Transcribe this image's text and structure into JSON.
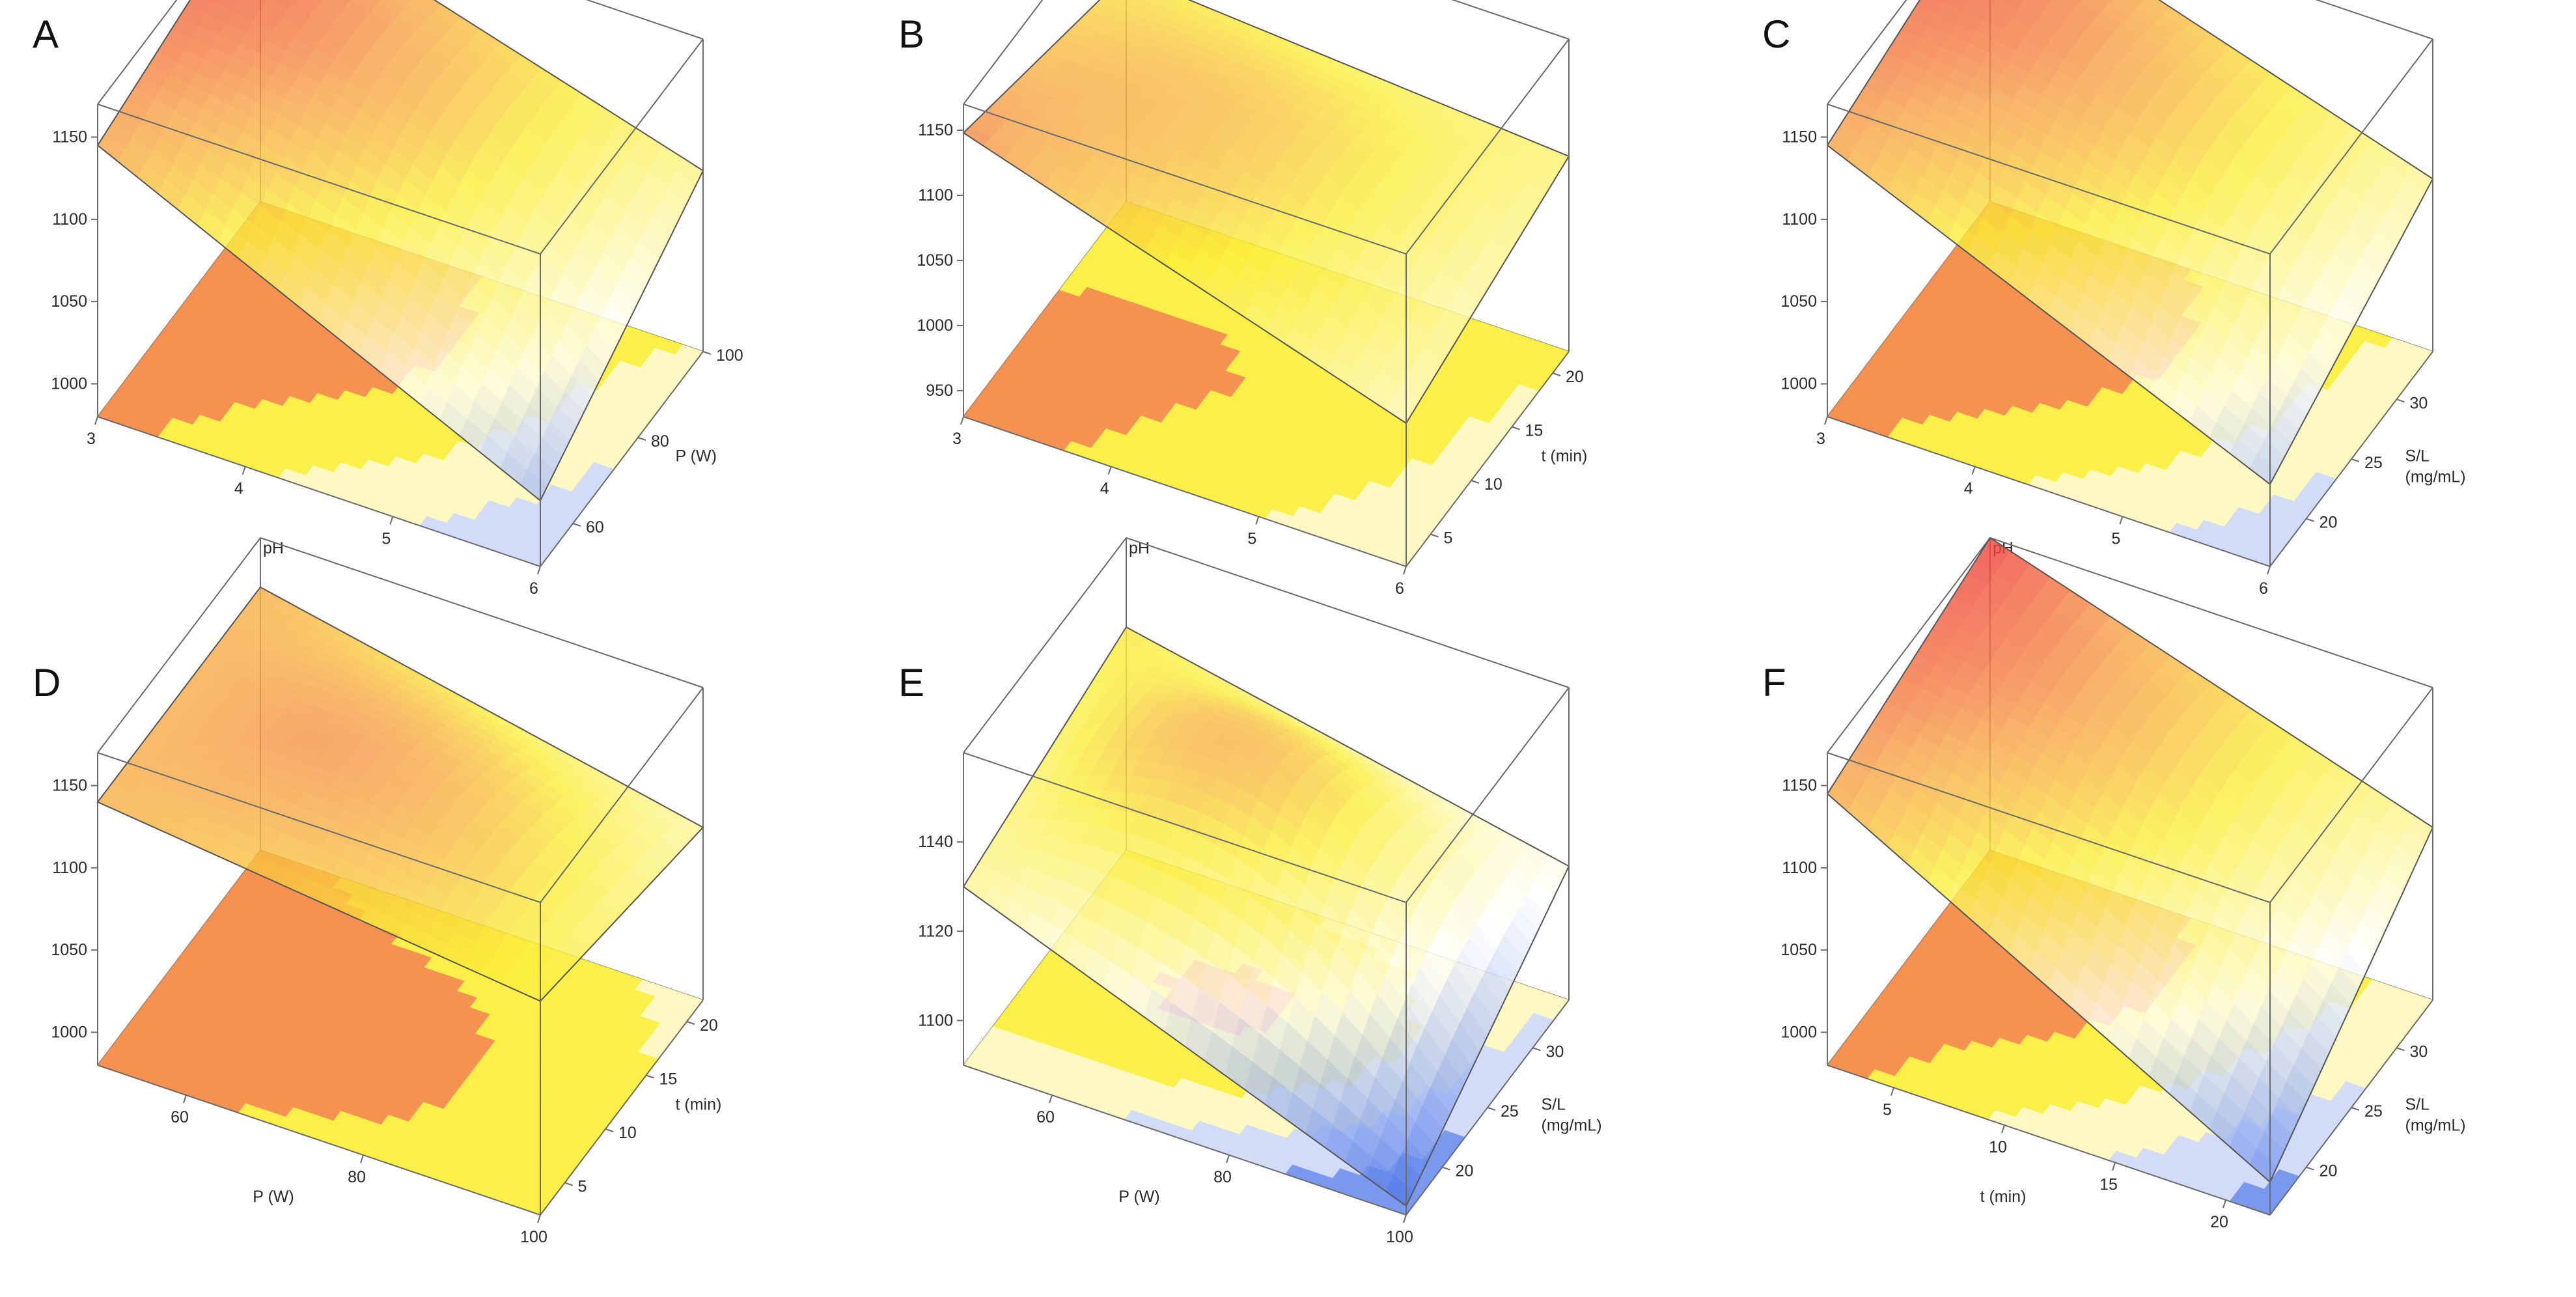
{
  "figure": {
    "description_text": ""
  },
  "colors": {
    "max": "#ef3b3b",
    "high": "#f7a047",
    "mid": "#fbee3a",
    "low": "#ffffff",
    "min": "#3f6be5",
    "box": "#6a6a6a"
  },
  "chart_data": [
    {
      "id": "A",
      "type": "surface3d",
      "label": "A",
      "x": {
        "name": "pH",
        "ticks": [
          "3",
          "4",
          "5",
          "6"
        ],
        "range": [
          3,
          6
        ]
      },
      "y": {
        "name": "P (W)",
        "ticks": [
          "60",
          "80",
          "100"
        ],
        "range": [
          50,
          100
        ]
      },
      "z": {
        "ticks": [
          "1000",
          "1050",
          "1100",
          "1150"
        ],
        "range": [
          980,
          1170
        ]
      },
      "surface_corners": {
        "x_min_y_min": 1145,
        "x_max_y_min": 1020,
        "x_min_y_max": 1170,
        "x_max_y_max": 1090
      },
      "contour_levels": 5
    },
    {
      "id": "B",
      "type": "surface3d",
      "label": "B",
      "x": {
        "name": "pH",
        "ticks": [
          "3",
          "4",
          "5",
          "6"
        ],
        "range": [
          3,
          6
        ]
      },
      "y": {
        "name": "t (min)",
        "ticks": [
          "5",
          "10",
          "15",
          "20"
        ],
        "range": [
          2,
          22
        ]
      },
      "z": {
        "ticks": [
          "950",
          "1000",
          "1050",
          "1100",
          "1150"
        ],
        "range": [
          930,
          1170
        ]
      },
      "surface_corners": {
        "x_min_y_min": 1148,
        "x_max_y_min": 1040,
        "x_min_y_max": 1105,
        "x_max_y_max": 1080
      },
      "contour_levels": 5
    },
    {
      "id": "C",
      "type": "surface3d",
      "label": "C",
      "x": {
        "name": "pH",
        "ticks": [
          "3",
          "4",
          "5",
          "6"
        ],
        "range": [
          3,
          6
        ]
      },
      "y": {
        "name": "S/L\n(mg/mL)",
        "ticks": [
          "20",
          "25",
          "30"
        ],
        "range": [
          16,
          34
        ]
      },
      "z": {
        "ticks": [
          "1000",
          "1050",
          "1100",
          "1150"
        ],
        "range": [
          980,
          1170
        ]
      },
      "surface_corners": {
        "x_min_y_min": 1145,
        "x_max_y_min": 1030,
        "x_min_y_max": 1170,
        "x_max_y_max": 1085
      },
      "contour_levels": 5
    },
    {
      "id": "D",
      "type": "surface3d",
      "label": "D",
      "x": {
        "name": "P (W)",
        "ticks": [
          "60",
          "80",
          "100"
        ],
        "range": [
          50,
          100
        ]
      },
      "y": {
        "name": "t (min)",
        "ticks": [
          "5",
          "10",
          "15",
          "20"
        ],
        "range": [
          2,
          22
        ]
      },
      "z": {
        "ticks": [
          "1000",
          "1050",
          "1100",
          "1150"
        ],
        "range": [
          980,
          1170
        ]
      },
      "surface_corners": {
        "x_min_y_min": 1140,
        "x_max_y_min": 1110,
        "x_min_y_max": 1140,
        "x_max_y_max": 1085
      },
      "contour_levels": 5
    },
    {
      "id": "E",
      "type": "surface3d",
      "label": "E",
      "x": {
        "name": "P (W)",
        "ticks": [
          "60",
          "80",
          "100"
        ],
        "range": [
          50,
          100
        ]
      },
      "y": {
        "name": "S/L\n(mg/mL)",
        "ticks": [
          "20",
          "25",
          "30"
        ],
        "range": [
          16,
          34
        ]
      },
      "z": {
        "ticks": [
          "1100",
          "1120",
          "1140"
        ],
        "range": [
          1090,
          1160
        ]
      },
      "surface_corners": {
        "x_min_y_min": 1130,
        "x_max_y_min": 1092,
        "x_min_y_max": 1140,
        "x_max_y_max": 1120
      },
      "contour_levels": 5
    },
    {
      "id": "F",
      "type": "surface3d",
      "label": "F",
      "x": {
        "name": "t (min)",
        "ticks": [
          "5",
          "10",
          "15",
          "20"
        ],
        "range": [
          2,
          22
        ]
      },
      "y": {
        "name": "S/L\n(mg/mL)",
        "ticks": [
          "20",
          "25",
          "30"
        ],
        "range": [
          16,
          34
        ]
      },
      "z": {
        "ticks": [
          "1000",
          "1050",
          "1100",
          "1150"
        ],
        "range": [
          980,
          1170
        ]
      },
      "surface_corners": {
        "x_min_y_min": 1145,
        "x_max_y_min": 1000,
        "x_min_y_max": 1170,
        "x_max_y_max": 1085
      },
      "contour_levels": 5
    }
  ]
}
